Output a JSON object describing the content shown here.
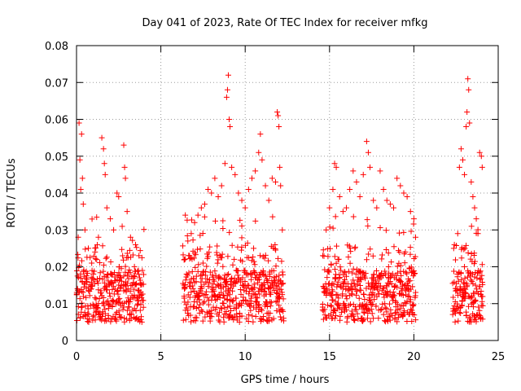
{
  "chart_data": {
    "type": "scatter",
    "title": "Day 041 of 2023, Rate Of TEC Index for receiver mfkg",
    "xlabel": "GPS time / hours",
    "ylabel": "ROTI / TECUs",
    "xlim": [
      0,
      25
    ],
    "ylim": [
      0,
      0.08
    ],
    "xticks": [
      0,
      5,
      10,
      15,
      20,
      25
    ],
    "xtick_labels": [
      "0",
      "5",
      "10",
      "15",
      "20",
      "25"
    ],
    "yticks": [
      0,
      0.01,
      0.02,
      0.03,
      0.04,
      0.05,
      0.06,
      0.07,
      0.08
    ],
    "ytick_labels": [
      "0",
      "0.01",
      "0.02",
      "0.03",
      "0.04",
      "0.05",
      "0.06",
      "0.07",
      "0.08"
    ],
    "grid": true,
    "marker": "+",
    "color": "#ff0000",
    "series": [
      {
        "name": "ROTI",
        "points": [
          [
            0.15,
            0.059
          ],
          [
            0.3,
            0.056
          ],
          [
            0.2,
            0.049
          ],
          [
            0.35,
            0.044
          ],
          [
            0.25,
            0.041
          ],
          [
            0.4,
            0.037
          ],
          [
            0.1,
            0.028
          ],
          [
            0.5,
            0.03
          ],
          [
            0.7,
            0.025
          ],
          [
            0.9,
            0.021
          ],
          [
            1.1,
            0.024
          ],
          [
            1.3,
            0.028
          ],
          [
            1.5,
            0.055
          ],
          [
            1.6,
            0.052
          ],
          [
            1.65,
            0.048
          ],
          [
            1.7,
            0.045
          ],
          [
            1.8,
            0.036
          ],
          [
            2.0,
            0.033
          ],
          [
            2.2,
            0.03
          ],
          [
            2.4,
            0.04
          ],
          [
            2.5,
            0.039
          ],
          [
            2.8,
            0.053
          ],
          [
            2.85,
            0.047
          ],
          [
            2.9,
            0.044
          ],
          [
            3.0,
            0.035
          ],
          [
            3.2,
            0.028
          ],
          [
            3.5,
            0.026
          ],
          [
            3.7,
            0.023
          ],
          [
            3.9,
            0.019
          ],
          [
            1.0,
            0.018
          ],
          [
            0.6,
            0.016
          ],
          [
            2.6,
            0.017
          ],
          [
            3.3,
            0.015
          ],
          [
            6.4,
            0.022
          ],
          [
            6.6,
            0.027
          ],
          [
            6.8,
            0.029
          ],
          [
            7.0,
            0.032
          ],
          [
            7.2,
            0.034
          ],
          [
            7.4,
            0.036
          ],
          [
            7.6,
            0.037
          ],
          [
            7.8,
            0.041
          ],
          [
            8.0,
            0.04
          ],
          [
            8.2,
            0.044
          ],
          [
            8.4,
            0.039
          ],
          [
            8.6,
            0.042
          ],
          [
            8.8,
            0.048
          ],
          [
            8.9,
            0.066
          ],
          [
            8.95,
            0.068
          ],
          [
            9.0,
            0.072
          ],
          [
            9.05,
            0.06
          ],
          [
            9.1,
            0.058
          ],
          [
            9.2,
            0.047
          ],
          [
            9.4,
            0.045
          ],
          [
            9.6,
            0.04
          ],
          [
            9.8,
            0.038
          ],
          [
            10.0,
            0.036
          ],
          [
            10.2,
            0.041
          ],
          [
            10.4,
            0.044
          ],
          [
            10.6,
            0.046
          ],
          [
            10.8,
            0.051
          ],
          [
            10.9,
            0.056
          ],
          [
            11.0,
            0.049
          ],
          [
            11.2,
            0.042
          ],
          [
            11.4,
            0.038
          ],
          [
            11.6,
            0.044
          ],
          [
            11.8,
            0.043
          ],
          [
            11.9,
            0.062
          ],
          [
            11.95,
            0.061
          ],
          [
            12.0,
            0.058
          ],
          [
            12.05,
            0.047
          ],
          [
            12.1,
            0.042
          ],
          [
            12.2,
            0.03
          ],
          [
            7.5,
            0.021
          ],
          [
            8.5,
            0.023
          ],
          [
            10.5,
            0.025
          ],
          [
            9.5,
            0.019
          ],
          [
            14.6,
            0.023
          ],
          [
            14.8,
            0.03
          ],
          [
            15.0,
            0.036
          ],
          [
            15.2,
            0.041
          ],
          [
            15.3,
            0.048
          ],
          [
            15.4,
            0.047
          ],
          [
            15.6,
            0.039
          ],
          [
            15.8,
            0.035
          ],
          [
            16.0,
            0.036
          ],
          [
            16.2,
            0.041
          ],
          [
            16.4,
            0.046
          ],
          [
            16.6,
            0.043
          ],
          [
            16.8,
            0.039
          ],
          [
            17.0,
            0.045
          ],
          [
            17.2,
            0.054
          ],
          [
            17.3,
            0.051
          ],
          [
            17.4,
            0.047
          ],
          [
            17.6,
            0.038
          ],
          [
            17.8,
            0.036
          ],
          [
            18.0,
            0.046
          ],
          [
            18.2,
            0.041
          ],
          [
            18.4,
            0.038
          ],
          [
            18.6,
            0.037
          ],
          [
            18.8,
            0.036
          ],
          [
            19.0,
            0.044
          ],
          [
            19.2,
            0.042
          ],
          [
            19.4,
            0.04
          ],
          [
            19.6,
            0.039
          ],
          [
            19.8,
            0.035
          ],
          [
            20.0,
            0.033
          ],
          [
            20.1,
            0.028
          ],
          [
            15.5,
            0.022
          ],
          [
            16.5,
            0.025
          ],
          [
            18.5,
            0.02
          ],
          [
            19.5,
            0.024
          ],
          [
            22.4,
            0.026
          ],
          [
            22.6,
            0.029
          ],
          [
            22.7,
            0.047
          ],
          [
            22.8,
            0.052
          ],
          [
            22.9,
            0.049
          ],
          [
            23.0,
            0.045
          ],
          [
            23.1,
            0.058
          ],
          [
            23.15,
            0.062
          ],
          [
            23.2,
            0.071
          ],
          [
            23.25,
            0.068
          ],
          [
            23.3,
            0.059
          ],
          [
            23.4,
            0.043
          ],
          [
            23.5,
            0.039
          ],
          [
            23.6,
            0.036
          ],
          [
            23.7,
            0.033
          ],
          [
            23.8,
            0.029
          ],
          [
            23.9,
            0.051
          ],
          [
            24.0,
            0.05
          ],
          [
            24.05,
            0.047
          ],
          [
            23.0,
            0.02
          ]
        ]
      }
    ]
  }
}
